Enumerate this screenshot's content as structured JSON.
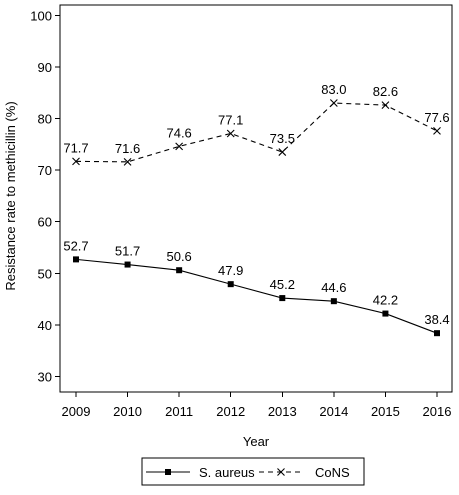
{
  "chart_data": {
    "type": "line",
    "title": "",
    "xlabel": "Year",
    "ylabel": "Resistance rate to methicillin (%)",
    "categories": [
      "2009",
      "2010",
      "2011",
      "2012",
      "2013",
      "2014",
      "2015",
      "2016"
    ],
    "ylim": [
      27,
      102
    ],
    "yticks": [
      30,
      40,
      50,
      60,
      70,
      80,
      90,
      100
    ],
    "grid": false,
    "legend_position": "bottom",
    "series": [
      {
        "name": "S. aureus",
        "line_style": "solid",
        "marker": "square",
        "color": "#000000",
        "values": [
          52.7,
          51.7,
          50.6,
          47.9,
          45.2,
          44.6,
          42.2,
          38.4
        ],
        "labels": [
          "52.7",
          "51.7",
          "50.6",
          "47.9",
          "45.2",
          "44.6",
          "42.2",
          "38.4"
        ]
      },
      {
        "name": "CoNS",
        "line_style": "dashed",
        "marker": "x",
        "color": "#000000",
        "values": [
          71.7,
          71.6,
          74.6,
          77.1,
          73.5,
          83.0,
          82.6,
          77.6
        ],
        "labels": [
          "71.7",
          "71.6",
          "74.6",
          "77.1",
          "73.5",
          "83.0",
          "82.6",
          "77.6"
        ]
      }
    ]
  }
}
